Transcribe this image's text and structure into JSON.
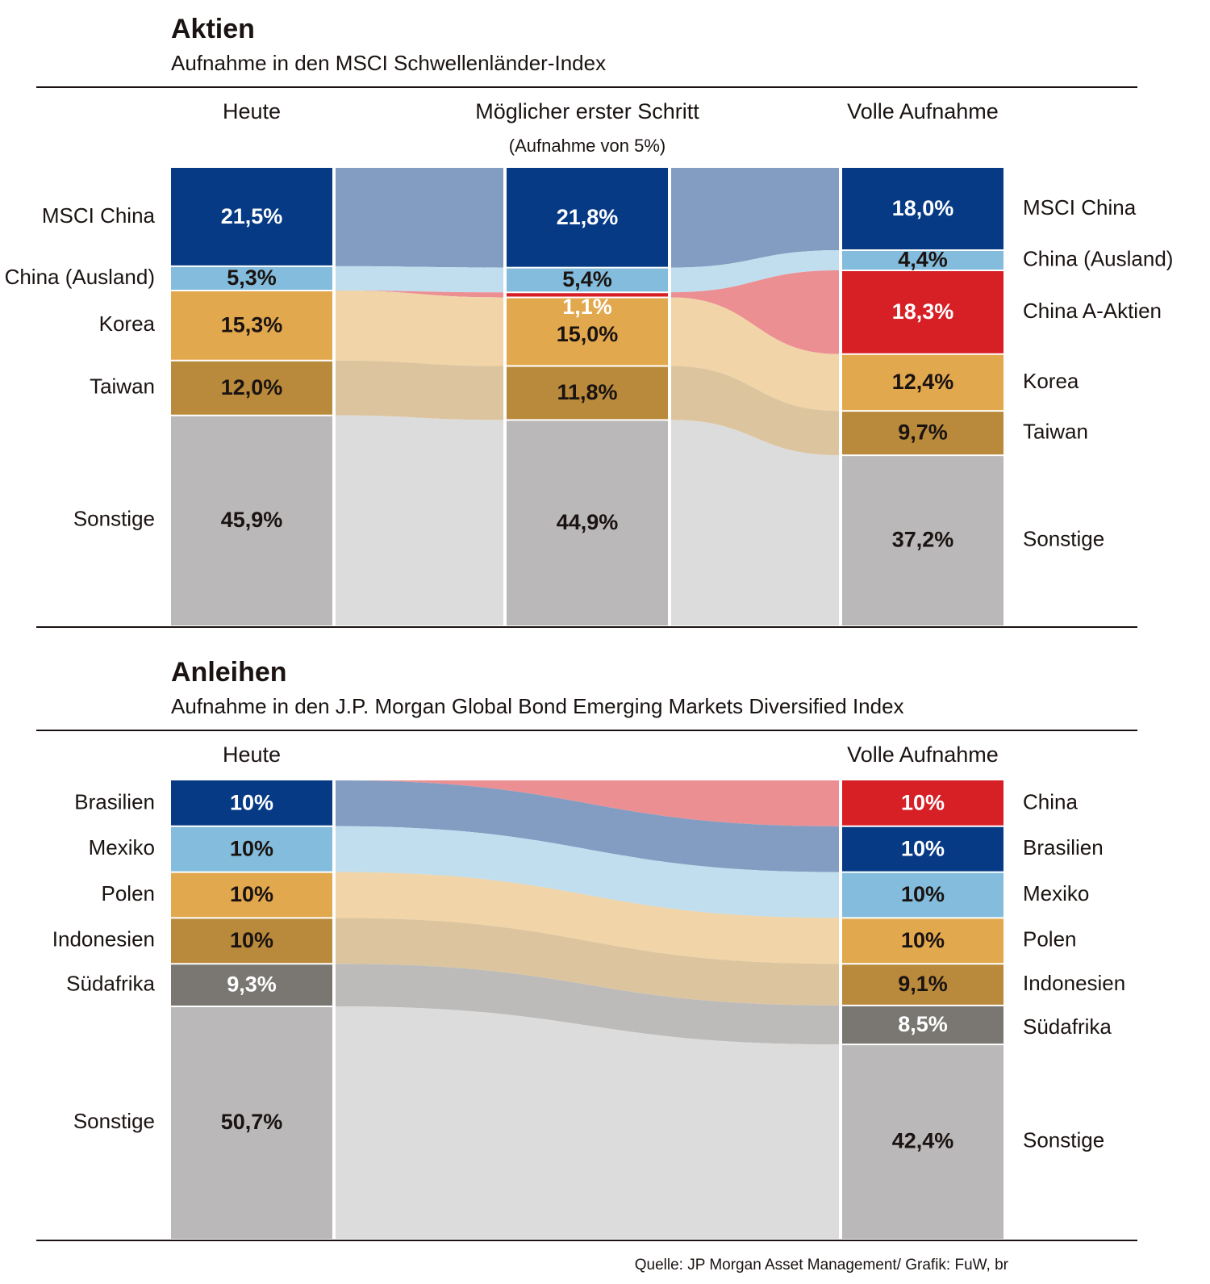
{
  "chart_data": [
    {
      "type": "alluvial",
      "title": "Aktien",
      "subtitle": "Aufnahme in den MSCI Schwellenländer-Index",
      "categories": [
        "Heute",
        "Möglicher erster Schritt",
        "Volle Aufnahme"
      ],
      "category_notes": [
        null,
        "(Aufnahme von 5%)",
        null
      ],
      "series": [
        {
          "name": "MSCI China",
          "color": "#063a85",
          "values": [
            21.5,
            21.8,
            18.0
          ],
          "value_labels": [
            "21,5%",
            "21,8%",
            "18,0%"
          ]
        },
        {
          "name": "China (Ausland)",
          "color": "#83bcdc",
          "values": [
            5.3,
            5.4,
            4.4
          ],
          "value_labels": [
            "5,3%",
            "5,4%",
            "4,4%"
          ]
        },
        {
          "name": "China A-Aktien",
          "color": "#d71f26",
          "values": [
            null,
            1.1,
            18.3
          ],
          "value_labels": [
            null,
            "1,1%",
            "18,3%"
          ]
        },
        {
          "name": "Korea",
          "color": "#e2a84e",
          "values": [
            15.3,
            15.0,
            12.4
          ],
          "value_labels": [
            "15,3%",
            "15,0%",
            "12,4%"
          ]
        },
        {
          "name": "Taiwan",
          "color": "#b98a3c",
          "values": [
            12.0,
            11.8,
            9.7
          ],
          "value_labels": [
            "12,0%",
            "11,8%",
            "9,7%"
          ]
        },
        {
          "name": "Sonstige",
          "color": "#bab8b9",
          "values": [
            45.9,
            44.9,
            37.2
          ],
          "value_labels": [
            "45,9%",
            "44,9%",
            "37,2%"
          ]
        }
      ]
    },
    {
      "type": "alluvial",
      "title": "Anleihen",
      "subtitle": "Aufnahme in den J.P. Morgan Global Bond Emerging Markets Diversified Index",
      "categories": [
        "Heute",
        "Volle Aufnahme"
      ],
      "series": [
        {
          "name": "China",
          "color": "#d71f26",
          "values": [
            null,
            10
          ],
          "value_labels": [
            null,
            "10%"
          ]
        },
        {
          "name": "Brasilien",
          "color": "#063a85",
          "values": [
            10,
            10
          ],
          "value_labels": [
            "10%",
            "10%"
          ]
        },
        {
          "name": "Mexiko",
          "color": "#83bcdc",
          "values": [
            10,
            10
          ],
          "value_labels": [
            "10%",
            "10%"
          ]
        },
        {
          "name": "Polen",
          "color": "#e2a84e",
          "values": [
            10,
            10
          ],
          "value_labels": [
            "10%",
            "10%"
          ]
        },
        {
          "name": "Indonesien",
          "color": "#b98a3c",
          "values": [
            10,
            9.1
          ],
          "value_labels": [
            "10%",
            "9,1%"
          ]
        },
        {
          "name": "Südafrika",
          "color": "#7a7772",
          "values": [
            9.3,
            8.5
          ],
          "value_labels": [
            "9,3%",
            "8,5%"
          ]
        },
        {
          "name": "Sonstige",
          "color": "#bab8b9",
          "values": [
            50.7,
            42.4
          ],
          "value_labels": [
            "50,7%",
            "42,4%"
          ]
        }
      ]
    }
  ],
  "source": "Quelle: JP Morgan Asset Management/ Grafik: FuW, br"
}
